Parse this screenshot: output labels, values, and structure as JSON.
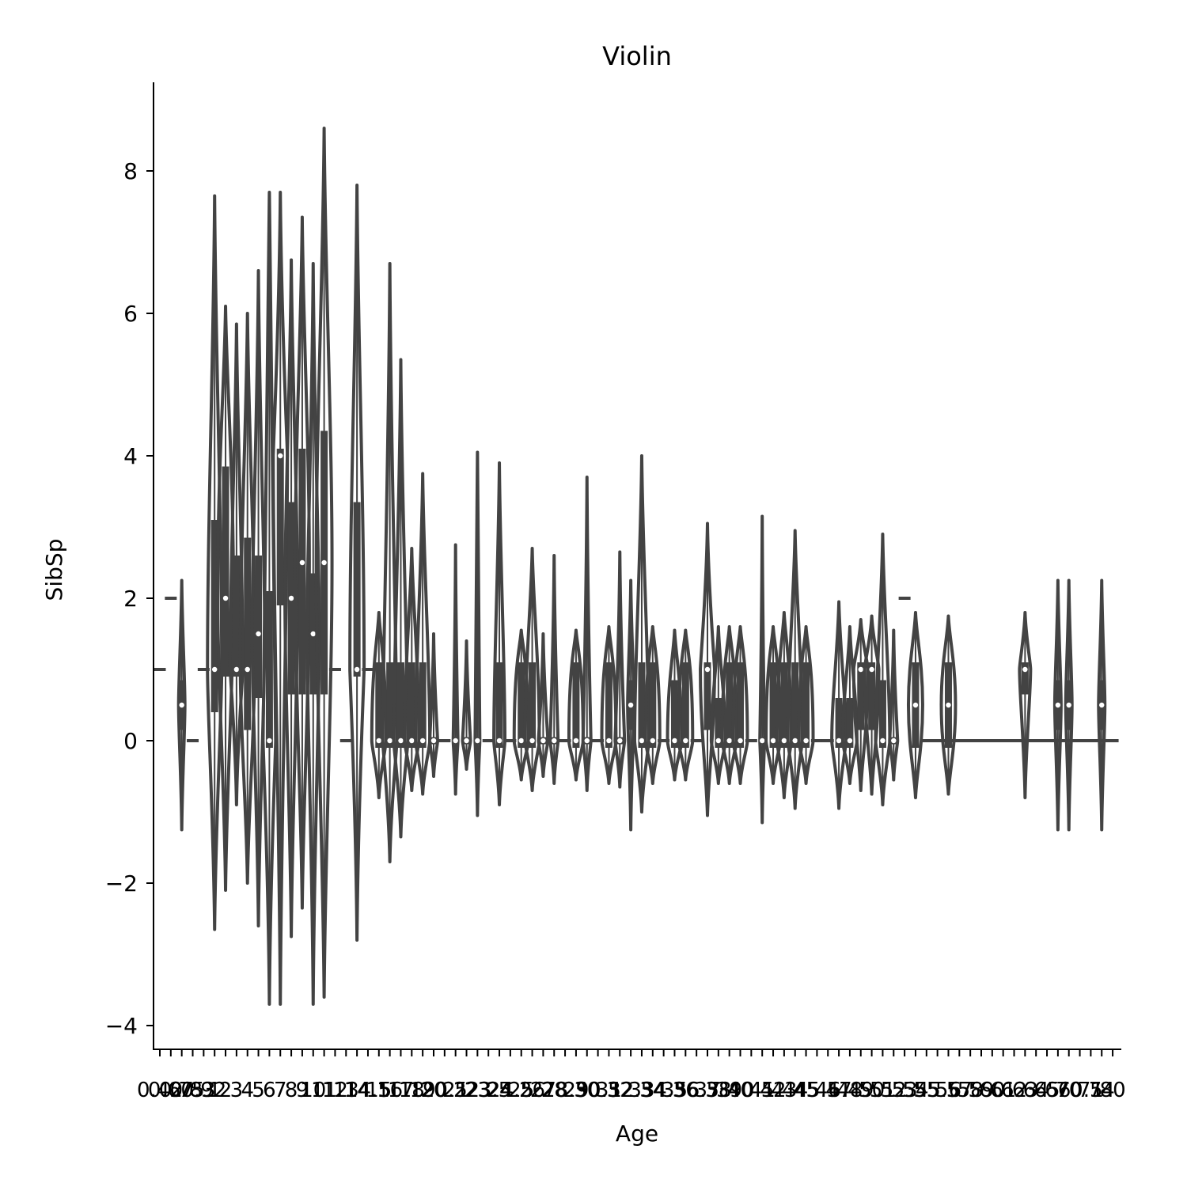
{
  "chart_data": {
    "type": "violin",
    "title": "Violin",
    "xlabel": "Age",
    "ylabel": "SibSp",
    "ylim": [
      -4.35,
      9.2
    ],
    "yticks": [
      -4,
      -2,
      0,
      2,
      4,
      6,
      8
    ],
    "ytick_labels": [
      "−4",
      "−2",
      "0",
      "2",
      "4",
      "6",
      "8"
    ],
    "x_categories": [
      "0.42",
      "0.67",
      "0.75",
      "0.83",
      "0.92",
      "1",
      "2",
      "3",
      "4",
      "5",
      "6",
      "7",
      "8",
      "9",
      "10",
      "11",
      "12",
      "13",
      "14",
      "14.5",
      "15",
      "16",
      "17",
      "18",
      "19",
      "20",
      "20.5",
      "21",
      "22",
      "23",
      "23.5",
      "24",
      "24.5",
      "25",
      "26",
      "27",
      "28",
      "28.5",
      "29",
      "30",
      "30.5",
      "31",
      "32",
      "32.5",
      "33",
      "34",
      "34.5",
      "35",
      "36",
      "36.5",
      "37",
      "38",
      "39",
      "40",
      "40.5",
      "41",
      "42",
      "43",
      "44",
      "45",
      "45.5",
      "46",
      "47",
      "48",
      "49",
      "50",
      "51",
      "52",
      "53",
      "54",
      "55",
      "55.5",
      "56",
      "57",
      "58",
      "59",
      "60",
      "61",
      "62",
      "63",
      "64",
      "65",
      "66",
      "70",
      "70.5",
      "71",
      "74",
      "80"
    ],
    "violin_color": "#434343",
    "median_marker_color": "#ffffff",
    "grid": false,
    "violins": [
      {
        "category": "0.42",
        "kind": "dash",
        "median": 1
      },
      {
        "category": "0.67",
        "kind": "dash",
        "median": 2
      },
      {
        "category": "0.75",
        "kind": "violin",
        "lo": -1.25,
        "hi": 2.25,
        "q1": 0.15,
        "q3": 0.85,
        "median": 0.5,
        "width": 0.4
      },
      {
        "category": "0.83",
        "kind": "dash",
        "median": 0
      },
      {
        "category": "0.92",
        "kind": "dash",
        "median": 1
      },
      {
        "category": "1",
        "kind": "violin",
        "lo": -2.65,
        "hi": 7.65,
        "q1": 0.4,
        "q3": 3.1,
        "median": 1,
        "width": 0.9
      },
      {
        "category": "2",
        "kind": "violin",
        "lo": -2.1,
        "hi": 6.1,
        "q1": 0.9,
        "q3": 3.85,
        "median": 2,
        "width": 1
      },
      {
        "category": "3",
        "kind": "violin",
        "lo": -0.9,
        "hi": 5.85,
        "q1": 0.9,
        "q3": 2.6,
        "median": 1,
        "width": 0.8
      },
      {
        "category": "4",
        "kind": "violin",
        "lo": -2.0,
        "hi": 6.0,
        "q1": 0.15,
        "q3": 2.85,
        "median": 1,
        "width": 0.9
      },
      {
        "category": "5",
        "kind": "violin",
        "lo": -2.6,
        "hi": 6.6,
        "q1": 0.6,
        "q3": 2.6,
        "median": 1.5,
        "width": 0.8
      },
      {
        "category": "6",
        "kind": "violin",
        "lo": -3.7,
        "hi": 7.7,
        "q1": -0.1,
        "q3": 2.1,
        "median": 0,
        "width": 0.8
      },
      {
        "category": "7",
        "kind": "violin",
        "lo": -3.7,
        "hi": 7.7,
        "q1": 1.9,
        "q3": 4.1,
        "median": 4,
        "width": 0.9
      },
      {
        "category": "8",
        "kind": "violin",
        "lo": -2.75,
        "hi": 6.75,
        "q1": 0.65,
        "q3": 3.35,
        "median": 2,
        "width": 0.8
      },
      {
        "category": "9",
        "kind": "violin",
        "lo": -2.35,
        "hi": 7.35,
        "q1": 0.65,
        "q3": 4.1,
        "median": 2.5,
        "width": 0.9
      },
      {
        "category": "10",
        "kind": "violin",
        "lo": -3.7,
        "hi": 6.7,
        "q1": 0.65,
        "q3": 2.35,
        "median": 1.5,
        "width": 0.8
      },
      {
        "category": "11",
        "kind": "violin",
        "lo": -3.6,
        "hi": 8.6,
        "q1": 0.65,
        "q3": 4.35,
        "median": 2.5,
        "width": 1
      },
      {
        "category": "12",
        "kind": "dash",
        "median": 1
      },
      {
        "category": "13",
        "kind": "dash",
        "median": 0
      },
      {
        "category": "14",
        "kind": "violin",
        "lo": -2.8,
        "hi": 7.8,
        "q1": 0.9,
        "q3": 3.35,
        "median": 1,
        "width": 0.9
      },
      {
        "category": "14.5",
        "kind": "dash",
        "median": 1
      },
      {
        "category": "15",
        "kind": "violin",
        "lo": -0.8,
        "hi": 1.8,
        "q1": -0.1,
        "q3": 1.1,
        "median": 0,
        "width": 0.9
      },
      {
        "category": "16",
        "kind": "violin",
        "lo": -1.7,
        "hi": 6.7,
        "q1": -0.1,
        "q3": 1.1,
        "median": 0,
        "width": 0.9
      },
      {
        "category": "17",
        "kind": "violin",
        "lo": -1.35,
        "hi": 5.35,
        "q1": -0.1,
        "q3": 1.1,
        "median": 0,
        "width": 0.9
      },
      {
        "category": "18",
        "kind": "violin",
        "lo": -0.7,
        "hi": 2.7,
        "q1": -0.1,
        "q3": 1.1,
        "median": 0,
        "width": 0.9
      },
      {
        "category": "19",
        "kind": "violin",
        "lo": -0.75,
        "hi": 3.75,
        "q1": -0.1,
        "q3": 1.1,
        "median": 0,
        "width": 0.9
      },
      {
        "category": "20",
        "kind": "violin",
        "lo": -0.5,
        "hi": 1.5,
        "q1": -0.05,
        "q3": 0.05,
        "median": 0,
        "width": 0.5
      },
      {
        "category": "20.5",
        "kind": "dash",
        "median": 0
      },
      {
        "category": "21",
        "kind": "violin",
        "lo": -0.75,
        "hi": 2.75,
        "q1": -0.05,
        "q3": 0.05,
        "median": 0,
        "width": 0.3
      },
      {
        "category": "22",
        "kind": "violin",
        "lo": -0.4,
        "hi": 1.4,
        "q1": -0.05,
        "q3": 0.05,
        "median": 0,
        "width": 0.5
      },
      {
        "category": "23",
        "kind": "violin",
        "lo": -1.05,
        "hi": 4.05,
        "q1": -0.05,
        "q3": 0.05,
        "median": 0,
        "width": 0.3
      },
      {
        "category": "23.5",
        "kind": "dash",
        "median": 0
      },
      {
        "category": "24",
        "kind": "violin",
        "lo": -0.9,
        "hi": 3.9,
        "q1": -0.1,
        "q3": 1.1,
        "median": 0,
        "width": 0.7
      },
      {
        "category": "24.5",
        "kind": "dash",
        "median": 0
      },
      {
        "category": "25",
        "kind": "violin",
        "lo": -0.55,
        "hi": 1.55,
        "q1": -0.1,
        "q3": 1.1,
        "median": 0,
        "width": 0.9
      },
      {
        "category": "26",
        "kind": "violin",
        "lo": -0.7,
        "hi": 2.7,
        "q1": -0.1,
        "q3": 1.1,
        "median": 0,
        "width": 0.9
      },
      {
        "category": "27",
        "kind": "violin",
        "lo": -0.5,
        "hi": 1.5,
        "q1": -0.05,
        "q3": 0.05,
        "median": 0,
        "width": 0.6
      },
      {
        "category": "28",
        "kind": "violin",
        "lo": -0.6,
        "hi": 2.6,
        "q1": -0.05,
        "q3": 0.05,
        "median": 0,
        "width": 0.5
      },
      {
        "category": "28.5",
        "kind": "dash",
        "median": 0
      },
      {
        "category": "29",
        "kind": "violin",
        "lo": -0.55,
        "hi": 1.55,
        "q1": -0.1,
        "q3": 1.1,
        "median": 0,
        "width": 0.9
      },
      {
        "category": "30",
        "kind": "violin",
        "lo": -0.7,
        "hi": 3.7,
        "q1": -0.05,
        "q3": 0.05,
        "median": 0,
        "width": 0.5
      },
      {
        "category": "30.5",
        "kind": "dash",
        "median": 0
      },
      {
        "category": "31",
        "kind": "violin",
        "lo": -0.6,
        "hi": 1.6,
        "q1": -0.1,
        "q3": 1.1,
        "median": 0,
        "width": 0.9
      },
      {
        "category": "32",
        "kind": "violin",
        "lo": -0.65,
        "hi": 2.65,
        "q1": -0.05,
        "q3": 0.05,
        "median": 0,
        "width": 0.6
      },
      {
        "category": "32.5",
        "kind": "violin",
        "lo": -1.25,
        "hi": 2.25,
        "q1": 0.15,
        "q3": 0.85,
        "median": 0.5,
        "width": 0.4
      },
      {
        "category": "33",
        "kind": "violin",
        "lo": -1.0,
        "hi": 4.0,
        "q1": -0.1,
        "q3": 1.1,
        "median": 0,
        "width": 0.9
      },
      {
        "category": "34",
        "kind": "violin",
        "lo": -0.6,
        "hi": 1.6,
        "q1": -0.1,
        "q3": 1.1,
        "median": 0,
        "width": 0.9
      },
      {
        "category": "34.5",
        "kind": "dash",
        "median": 0
      },
      {
        "category": "35",
        "kind": "violin",
        "lo": -0.55,
        "hi": 1.55,
        "q1": -0.1,
        "q3": 0.85,
        "median": 0,
        "width": 0.9
      },
      {
        "category": "36",
        "kind": "violin",
        "lo": -0.55,
        "hi": 1.55,
        "q1": -0.1,
        "q3": 1.1,
        "median": 0,
        "width": 0.9
      },
      {
        "category": "36.5",
        "kind": "dash",
        "median": 0
      },
      {
        "category": "37",
        "kind": "violin",
        "lo": -1.05,
        "hi": 3.05,
        "q1": 0.15,
        "q3": 1.1,
        "median": 1,
        "width": 0.9
      },
      {
        "category": "38",
        "kind": "violin",
        "lo": -0.6,
        "hi": 1.6,
        "q1": -0.1,
        "q3": 0.6,
        "median": 0,
        "width": 0.9
      },
      {
        "category": "39",
        "kind": "violin",
        "lo": -0.6,
        "hi": 1.6,
        "q1": -0.1,
        "q3": 1.1,
        "median": 0,
        "width": 0.9
      },
      {
        "category": "40",
        "kind": "violin",
        "lo": -0.6,
        "hi": 1.6,
        "q1": -0.1,
        "q3": 1.1,
        "median": 0,
        "width": 0.9
      },
      {
        "category": "40.5",
        "kind": "dash",
        "median": 0
      },
      {
        "category": "41",
        "kind": "violin",
        "lo": -1.15,
        "hi": 3.15,
        "q1": -0.05,
        "q3": 0.05,
        "median": 0,
        "width": 0.3
      },
      {
        "category": "42",
        "kind": "violin",
        "lo": -0.6,
        "hi": 1.6,
        "q1": -0.1,
        "q3": 1.1,
        "median": 0,
        "width": 0.9
      },
      {
        "category": "43",
        "kind": "violin",
        "lo": -0.8,
        "hi": 1.8,
        "q1": -0.1,
        "q3": 1.1,
        "median": 0,
        "width": 0.9
      },
      {
        "category": "44",
        "kind": "violin",
        "lo": -0.95,
        "hi": 2.95,
        "q1": -0.1,
        "q3": 1.1,
        "median": 0,
        "width": 0.9
      },
      {
        "category": "45",
        "kind": "violin",
        "lo": -0.6,
        "hi": 1.6,
        "q1": -0.1,
        "q3": 1.1,
        "median": 0,
        "width": 0.9
      },
      {
        "category": "45.5",
        "kind": "dash",
        "median": 0
      },
      {
        "category": "46",
        "kind": "dash",
        "median": 0
      },
      {
        "category": "47",
        "kind": "violin",
        "lo": -0.95,
        "hi": 1.95,
        "q1": -0.1,
        "q3": 0.6,
        "median": 0,
        "width": 0.9
      },
      {
        "category": "48",
        "kind": "violin",
        "lo": -0.6,
        "hi": 1.6,
        "q1": -0.1,
        "q3": 0.6,
        "median": 0,
        "width": 0.9
      },
      {
        "category": "49",
        "kind": "violin",
        "lo": -0.7,
        "hi": 1.7,
        "q1": 0.15,
        "q3": 1.1,
        "median": 1,
        "width": 0.9
      },
      {
        "category": "50",
        "kind": "violin",
        "lo": -0.75,
        "hi": 1.75,
        "q1": 0.15,
        "q3": 1.1,
        "median": 1,
        "width": 0.9
      },
      {
        "category": "51",
        "kind": "violin",
        "lo": -0.9,
        "hi": 2.9,
        "q1": -0.1,
        "q3": 0.85,
        "median": 0,
        "width": 0.9
      },
      {
        "category": "52",
        "kind": "violin",
        "lo": -0.55,
        "hi": 1.55,
        "q1": -0.05,
        "q3": 0.05,
        "median": 0,
        "width": 0.5
      },
      {
        "category": "53",
        "kind": "dash",
        "median": 2
      },
      {
        "category": "54",
        "kind": "violin",
        "lo": -0.8,
        "hi": 1.8,
        "q1": -0.1,
        "q3": 1.1,
        "median": 0.5,
        "width": 0.9
      },
      {
        "category": "55",
        "kind": "dash",
        "median": 0
      },
      {
        "category": "55.5",
        "kind": "dash",
        "median": 0
      },
      {
        "category": "56",
        "kind": "violin",
        "lo": -0.75,
        "hi": 1.75,
        "q1": -0.1,
        "q3": 1.1,
        "median": 0.5,
        "width": 0.9
      },
      {
        "category": "57",
        "kind": "dash",
        "median": 0
      },
      {
        "category": "58",
        "kind": "dash",
        "median": 0
      },
      {
        "category": "59",
        "kind": "dash",
        "median": 0
      },
      {
        "category": "60",
        "kind": "dash",
        "median": 0
      },
      {
        "category": "61",
        "kind": "dash",
        "median": 0
      },
      {
        "category": "62",
        "kind": "dash",
        "median": 0
      },
      {
        "category": "63",
        "kind": "violin",
        "lo": -0.8,
        "hi": 1.8,
        "q1": 0.65,
        "q3": 1.1,
        "median": 1,
        "width": 0.7
      },
      {
        "category": "64",
        "kind": "dash",
        "median": 0
      },
      {
        "category": "65",
        "kind": "dash",
        "median": 0
      },
      {
        "category": "66",
        "kind": "violin",
        "lo": -1.25,
        "hi": 2.25,
        "q1": 0.15,
        "q3": 0.85,
        "median": 0.5,
        "width": 0.4
      },
      {
        "category": "70",
        "kind": "violin",
        "lo": -1.25,
        "hi": 2.25,
        "q1": 0.15,
        "q3": 0.85,
        "median": 0.5,
        "width": 0.4
      },
      {
        "category": "70.5",
        "kind": "dash",
        "median": 0
      },
      {
        "category": "71",
        "kind": "dash",
        "median": 0
      },
      {
        "category": "74",
        "kind": "violin",
        "lo": -1.25,
        "hi": 2.25,
        "q1": 0.15,
        "q3": 0.85,
        "median": 0.5,
        "width": 0.4
      },
      {
        "category": "80",
        "kind": "dash",
        "median": 0
      }
    ]
  }
}
